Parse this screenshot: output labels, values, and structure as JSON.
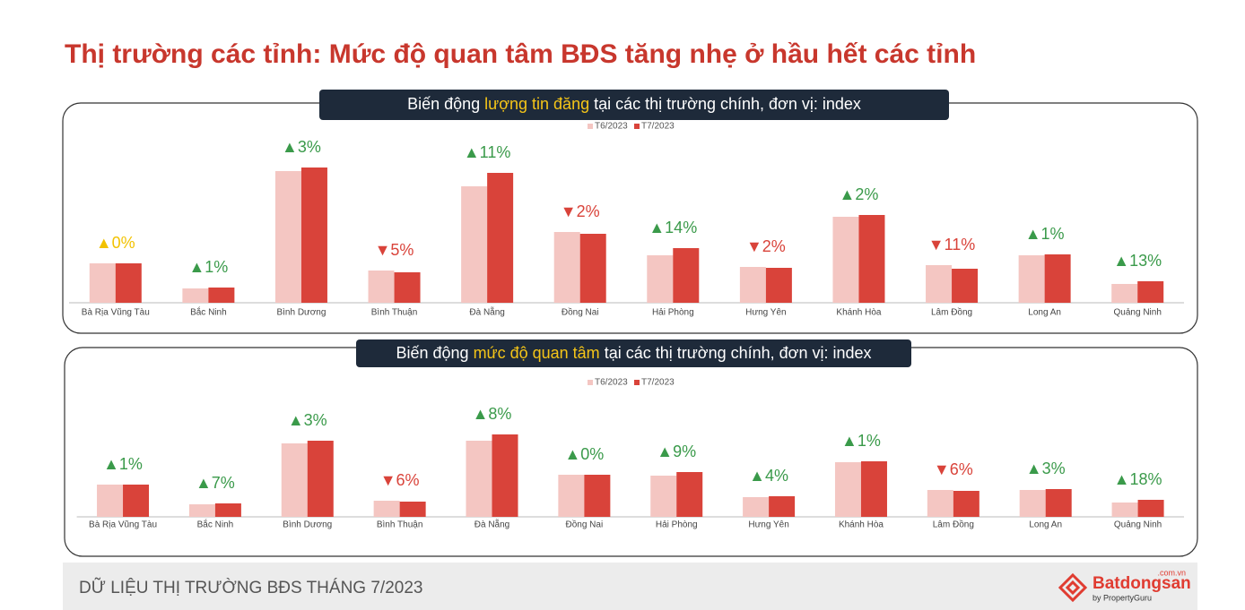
{
  "header": {
    "title": "Thị trường các tỉnh: Mức độ quan tâm BĐS tăng nhẹ ở hầu hết các tỉnh"
  },
  "chart_data": [
    {
      "type": "bar",
      "title": [
        "Biến động",
        "lượng tin đăng",
        "tại các thị trường chính, đơn vị: index"
      ],
      "categories": [
        "Bà Rịa Vũng Tàu",
        "Bắc Ninh",
        "Bình Dương",
        "Bình Thuận",
        "Đà Nẵng",
        "Đồng Nai",
        "Hải Phòng",
        "Hưng Yên",
        "Khánh Hòa",
        "Lâm Đồng",
        "Long An",
        "Quảng Ninh"
      ],
      "series": [
        {
          "name": "T6/2023",
          "color": "#f4c6c2",
          "values": [
            44,
            16,
            147,
            36,
            130,
            79,
            53,
            40,
            96,
            42,
            53,
            21
          ]
        },
        {
          "name": "T7/2023",
          "color": "#d9433a",
          "values": [
            44,
            17,
            151,
            34,
            145,
            77,
            61,
            39,
            98,
            38,
            54,
            24
          ]
        }
      ],
      "annotations": [
        "▲0%",
        "▲1%",
        "▲3%",
        "▼5%",
        "▲11%",
        "▼2%",
        "▲14%",
        "▼2%",
        "▲2%",
        "▼11%",
        "▲1%",
        "▲13%"
      ],
      "annotation_colors": [
        "#f2c200",
        "#3a9a4a",
        "#3a9a4a",
        "#d9433a",
        "#3a9a4a",
        "#d9433a",
        "#3a9a4a",
        "#d9433a",
        "#3a9a4a",
        "#d9433a",
        "#3a9a4a",
        "#3a9a4a"
      ],
      "ylim": [
        0,
        180
      ]
    },
    {
      "type": "bar",
      "title": [
        "Biến động",
        "mức độ quan tâm",
        "tại các thị trường chính, đơn vị: index"
      ],
      "categories": [
        "Bà Rịa Vũng Tàu",
        "Bắc Ninh",
        "Bình Dương",
        "Bình Thuận",
        "Đà Nẵng",
        "Đồng Nai",
        "Hải Phòng",
        "Hưng Yên",
        "Khánh Hòa",
        "Lâm Đồng",
        "Long An",
        "Quảng Ninh"
      ],
      "series": [
        {
          "name": "T6/2023",
          "color": "#f4c6c2",
          "values": [
            36,
            14,
            82,
            18,
            85,
            47,
            46,
            22,
            61,
            30,
            30,
            16
          ]
        },
        {
          "name": "T7/2023",
          "color": "#d9433a",
          "values": [
            36,
            15,
            85,
            17,
            92,
            47,
            50,
            23,
            62,
            29,
            31,
            19
          ]
        }
      ],
      "annotations": [
        "▲1%",
        "▲7%",
        "▲3%",
        "▼6%",
        "▲8%",
        "▲0%",
        "▲9%",
        "▲4%",
        "▲1%",
        "▼6%",
        "▲3%",
        "▲18%"
      ],
      "annotation_colors": [
        "#3a9a4a",
        "#3a9a4a",
        "#3a9a4a",
        "#d9433a",
        "#3a9a4a",
        "#3a9a4a",
        "#3a9a4a",
        "#3a9a4a",
        "#3a9a4a",
        "#d9433a",
        "#3a9a4a",
        "#3a9a4a"
      ],
      "ylim": [
        0,
        100
      ]
    }
  ],
  "footer": {
    "text": "DỮ LIỆU THỊ TRƯỜNG BĐS THÁNG 7/2023",
    "brand": "Batdongsan",
    "domain": ".com.vn",
    "tagline": "by PropertyGuru"
  }
}
